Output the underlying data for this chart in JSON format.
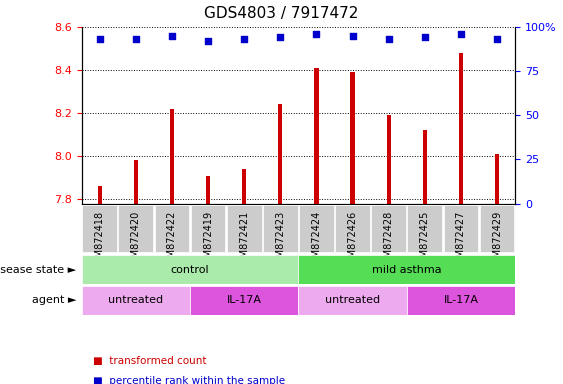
{
  "title": "GDS4803 / 7917472",
  "categories": [
    "GSM872418",
    "GSM872420",
    "GSM872422",
    "GSM872419",
    "GSM872421",
    "GSM872423",
    "GSM872424",
    "GSM872426",
    "GSM872428",
    "GSM872425",
    "GSM872427",
    "GSM872429"
  ],
  "bar_values": [
    7.86,
    7.98,
    8.22,
    7.91,
    7.94,
    8.24,
    8.41,
    8.39,
    8.19,
    8.12,
    8.48,
    8.01
  ],
  "percentile_values": [
    93,
    93,
    95,
    92,
    93,
    94,
    96,
    95,
    93,
    94,
    96,
    93
  ],
  "bar_color": "#cc0000",
  "dot_color": "#0000cc",
  "ylim_left": [
    7.78,
    8.6
  ],
  "ylim_right": [
    0,
    100
  ],
  "yticks_left": [
    7.8,
    8.0,
    8.2,
    8.4,
    8.6
  ],
  "yticks_right": [
    0,
    25,
    50,
    75,
    100
  ],
  "disease_state_groups": [
    {
      "label": "control",
      "start": 0,
      "end": 6,
      "color": "#aaeaaa"
    },
    {
      "label": "mild asthma",
      "start": 6,
      "end": 12,
      "color": "#55dd55"
    }
  ],
  "agent_groups": [
    {
      "label": "untreated",
      "start": 0,
      "end": 3,
      "color": "#eeaaee"
    },
    {
      "label": "IL-17A",
      "start": 3,
      "end": 6,
      "color": "#dd55dd"
    },
    {
      "label": "untreated",
      "start": 6,
      "end": 9,
      "color": "#eeaaee"
    },
    {
      "label": "IL-17A",
      "start": 9,
      "end": 12,
      "color": "#dd55dd"
    }
  ],
  "legend_items": [
    {
      "label": "transformed count",
      "color": "#cc0000"
    },
    {
      "label": "percentile rank within the sample",
      "color": "#0000cc"
    }
  ],
  "bar_width": 0.12,
  "background_color": "#ffffff",
  "xlabel_bg_color": "#cccccc",
  "xlabel_fontsize": 7,
  "title_fontsize": 11,
  "annotation_fontsize": 8,
  "label_fontsize": 8
}
